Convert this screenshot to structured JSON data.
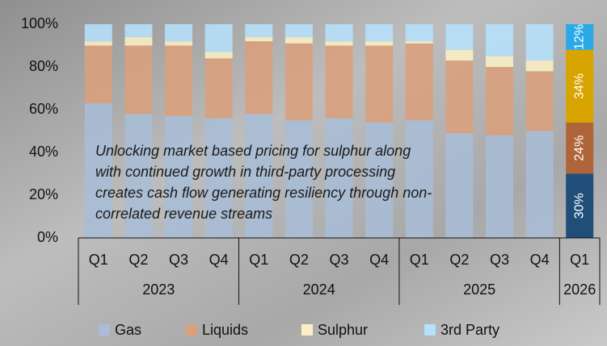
{
  "chart_data": {
    "type": "stacked_bar",
    "groups": [
      {
        "label": "2023",
        "categories": [
          "Q1",
          "Q2",
          "Q3",
          "Q4"
        ]
      },
      {
        "label": "2024",
        "categories": [
          "Q1",
          "Q2",
          "Q3",
          "Q4"
        ]
      },
      {
        "label": "2025",
        "categories": [
          "Q1",
          "Q2",
          "Q3",
          "Q4"
        ]
      },
      {
        "label": "2026",
        "categories": [
          "Q1"
        ]
      }
    ],
    "series": [
      {
        "name": "Gas",
        "color": "#a9bdd6",
        "highlight_color": "#1f4e79",
        "values": [
          63,
          58,
          57,
          56,
          58,
          55,
          56,
          54,
          55,
          49,
          48,
          50,
          30
        ],
        "value_labels": [
          null,
          null,
          null,
          null,
          null,
          null,
          null,
          null,
          null,
          null,
          null,
          null,
          "30%"
        ]
      },
      {
        "name": "Liquids",
        "color": "#d9a07c",
        "highlight_color": "#b0643a",
        "values": [
          27,
          32,
          33,
          28,
          34,
          36,
          34,
          36,
          36,
          34,
          32,
          28,
          24
        ],
        "value_labels": [
          null,
          null,
          null,
          null,
          null,
          null,
          null,
          null,
          null,
          null,
          null,
          null,
          "24%"
        ]
      },
      {
        "name": "Sulphur",
        "color": "#fbefc4",
        "highlight_color": "#d8a400",
        "values": [
          2,
          4,
          2,
          3,
          2,
          3,
          2,
          2,
          1,
          5,
          5,
          5,
          34
        ],
        "value_labels": [
          null,
          null,
          null,
          null,
          null,
          null,
          null,
          null,
          null,
          null,
          null,
          null,
          "34%"
        ]
      },
      {
        "name": "3rd Party",
        "color": "#b5e1fa",
        "highlight_color": "#29a9e8",
        "values": [
          8,
          6,
          8,
          13,
          6,
          6,
          8,
          8,
          8,
          12,
          15,
          17,
          12
        ],
        "value_labels": [
          null,
          null,
          null,
          null,
          null,
          null,
          null,
          null,
          null,
          null,
          null,
          null,
          "12%"
        ]
      }
    ],
    "ylim": [
      0,
      100
    ],
    "yticks": [
      {
        "value": 0,
        "label": "0%"
      },
      {
        "value": 20,
        "label": "20%"
      },
      {
        "value": 40,
        "label": "40%"
      },
      {
        "value": 60,
        "label": "60%"
      },
      {
        "value": 80,
        "label": "80%"
      },
      {
        "value": 100,
        "label": "100%"
      }
    ],
    "annotation": [
      "Unlocking market based pricing for sulphur along",
      "with continued growth in third-party processing",
      "creates cash flow generating resiliency through non-",
      "correlated revenue streams"
    ],
    "legend": "bottom"
  }
}
